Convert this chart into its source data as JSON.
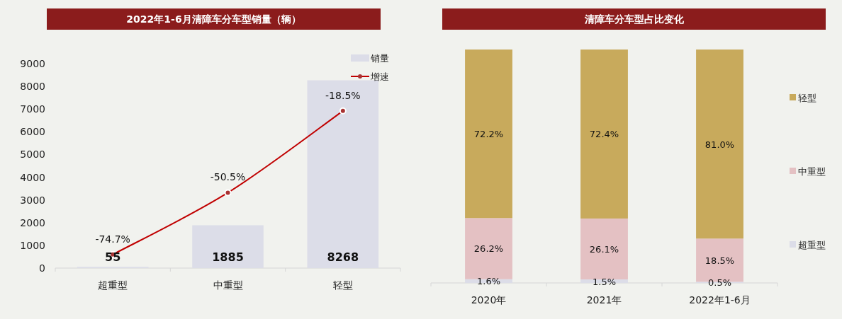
{
  "chart_data": [
    {
      "type": "bar",
      "title": "2022年1-6月清障车分车型销量（辆）",
      "categories": [
        "超重型",
        "中重型",
        "轻型"
      ],
      "ylim": [
        0,
        9000
      ],
      "yticks": [
        0,
        1000,
        2000,
        3000,
        4000,
        5000,
        6000,
        7000,
        8000,
        9000
      ],
      "y2lim": [
        -80,
        0
      ],
      "legend": "top right",
      "marker": "circle",
      "series": [
        {
          "name": "销量",
          "color": "#dcdde8",
          "values": [
            55,
            1885,
            8268
          ],
          "value_labels": [
            "55",
            "1885",
            "8268"
          ]
        },
        {
          "name": "增速",
          "type": "line",
          "axis": "y2",
          "color": "#c00000",
          "values": [
            -74.7,
            -50.5,
            -18.5
          ],
          "value_labels": [
            "-74.7%",
            "-50.5%",
            "-18.5%"
          ]
        }
      ]
    },
    {
      "type": "bar",
      "title": "清障车分车型占比变化",
      "categories": [
        "2020年",
        "2021年",
        "2022年1-6月"
      ],
      "stacked": true,
      "ylim": [
        0,
        100
      ],
      "legend": "right",
      "series": [
        {
          "name": "超重型",
          "color": "#dcdde8",
          "values": [
            1.6,
            1.5,
            0.5
          ],
          "value_labels": [
            "1.6%",
            "1.5%",
            "0.5%"
          ]
        },
        {
          "name": "中重型",
          "color": "#e4c1c3",
          "values": [
            26.2,
            26.1,
            18.5
          ],
          "value_labels": [
            "26.2%",
            "26.1%",
            "18.5%"
          ]
        },
        {
          "name": "轻型",
          "color": "#c8aa5c",
          "values": [
            72.2,
            72.4,
            81.0
          ],
          "value_labels": [
            "72.2%",
            "72.4%",
            "81.0%"
          ]
        }
      ]
    }
  ]
}
